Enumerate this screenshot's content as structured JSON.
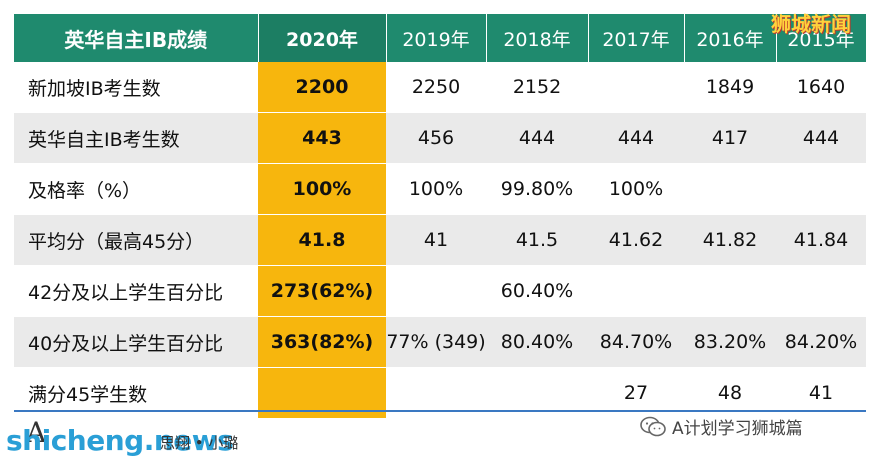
{
  "table": {
    "header_label": "英华自主IB成绩",
    "years": [
      "2020年",
      "2019年",
      "2018年",
      "2017年",
      "2016年",
      "2015年"
    ],
    "rows": [
      {
        "label": "新加坡IB考生数",
        "values": [
          "2200",
          "2250",
          "2152",
          "",
          "1849",
          "1640"
        ]
      },
      {
        "label": "英华自主IB考生数",
        "values": [
          "443",
          "456",
          "444",
          "444",
          "417",
          "444"
        ]
      },
      {
        "label": "及格率（%）",
        "values": [
          "100%",
          "100%",
          "99.80%",
          "100%",
          "",
          ""
        ]
      },
      {
        "label": "平均分（最高45分）",
        "values": [
          "41.8",
          "41",
          "41.5",
          "41.62",
          "41.82",
          "41.84"
        ]
      },
      {
        "label": "42分及以上学生百分比",
        "values": [
          "273(62%)",
          "",
          "60.40%",
          "",
          "",
          ""
        ]
      },
      {
        "label": "40分及以上学生百分比",
        "values": [
          "363(82%)",
          "77% (349)",
          "80.40%",
          "84.70%",
          "83.20%",
          "84.20%"
        ]
      },
      {
        "label": "满分45学生数",
        "values": [
          "",
          "",
          "",
          "27",
          "48",
          "41"
        ]
      }
    ]
  },
  "watermark": {
    "top_right": "狮城新闻",
    "site": "shicheng.news",
    "author": "思翔 • 小璐",
    "author_mark": "A",
    "wechat_text": "A计划学习狮城篇",
    "wechat_icon": "wechat-icon"
  },
  "colors": {
    "header_green": "#1f8a6e",
    "highlight_orange": "#f7b60d",
    "row_gray": "#eaeaea",
    "site_blue": "#2a9fd6"
  }
}
